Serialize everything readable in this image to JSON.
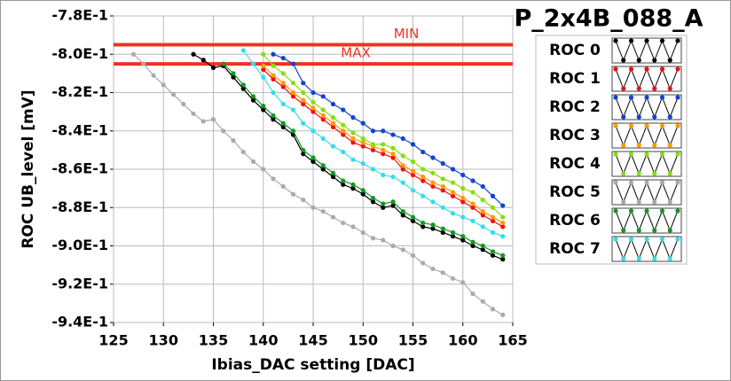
{
  "chart_data": {
    "type": "line",
    "title": "P_2x4B_088_A",
    "xlabel": "Ibias_DAC setting [DAC]",
    "ylabel": "ROC UB_level [mV]",
    "xlim": [
      125,
      165
    ],
    "xticks": [
      125,
      130,
      135,
      140,
      145,
      150,
      155,
      160,
      165
    ],
    "ylim": [
      -0.94,
      -0.78
    ],
    "yticks": [
      {
        "value": -0.94,
        "label": "-9.4E-1"
      },
      {
        "value": -0.92,
        "label": "-9.2E-1"
      },
      {
        "value": -0.9,
        "label": "-9.0E-1"
      },
      {
        "value": -0.88,
        "label": "-8.8E-1"
      },
      {
        "value": -0.86,
        "label": "-8.6E-1"
      },
      {
        "value": -0.84,
        "label": "-8.4E-1"
      },
      {
        "value": -0.82,
        "label": "-8.2E-1"
      },
      {
        "value": -0.8,
        "label": "-8.0E-1"
      },
      {
        "value": -0.78,
        "label": "-7.8E-1"
      }
    ],
    "grid": true,
    "limits": [
      {
        "label": "MIN",
        "value": -0.795,
        "color": "#ee3322"
      },
      {
        "label": "MAX",
        "value": -0.805,
        "color": "#ee3322"
      }
    ],
    "series": [
      {
        "name": "ROC 0",
        "color": "#000000",
        "x": [
          133,
          134,
          135,
          136,
          137,
          138,
          139,
          140,
          141,
          142,
          143,
          144,
          145,
          146,
          147,
          148,
          149,
          150,
          151,
          152,
          153,
          154,
          155,
          156,
          157,
          158,
          159,
          160,
          161,
          162,
          163,
          164
        ],
        "values": [
          -0.8,
          -0.803,
          -0.807,
          -0.806,
          -0.812,
          -0.818,
          -0.824,
          -0.829,
          -0.834,
          -0.838,
          -0.842,
          -0.852,
          -0.856,
          -0.86,
          -0.864,
          -0.868,
          -0.87,
          -0.873,
          -0.877,
          -0.88,
          -0.879,
          -0.884,
          -0.887,
          -0.89,
          -0.891,
          -0.893,
          -0.895,
          -0.897,
          -0.9,
          -0.902,
          -0.905,
          -0.907
        ]
      },
      {
        "name": "ROC 1",
        "color": "#ee1111",
        "x": [
          140,
          141,
          142,
          143,
          144,
          145,
          146,
          147,
          148,
          149,
          150,
          151,
          152,
          153,
          154,
          155,
          156,
          157,
          158,
          159,
          160,
          161,
          162,
          163,
          164
        ],
        "values": [
          -0.808,
          -0.813,
          -0.817,
          -0.822,
          -0.826,
          -0.83,
          -0.834,
          -0.838,
          -0.842,
          -0.846,
          -0.848,
          -0.85,
          -0.852,
          -0.854,
          -0.86,
          -0.863,
          -0.866,
          -0.869,
          -0.871,
          -0.874,
          -0.877,
          -0.88,
          -0.884,
          -0.887,
          -0.89
        ]
      },
      {
        "name": "ROC 2",
        "color": "#1144cc",
        "x": [
          141,
          142,
          143,
          144,
          145,
          146,
          147,
          148,
          149,
          150,
          151,
          152,
          153,
          154,
          155,
          156,
          157,
          158,
          159,
          160,
          161,
          162,
          163,
          164
        ],
        "values": [
          -0.8,
          -0.802,
          -0.805,
          -0.815,
          -0.82,
          -0.822,
          -0.826,
          -0.829,
          -0.833,
          -0.836,
          -0.84,
          -0.84,
          -0.842,
          -0.844,
          -0.847,
          -0.851,
          -0.854,
          -0.857,
          -0.86,
          -0.863,
          -0.866,
          -0.869,
          -0.874,
          -0.879
        ]
      },
      {
        "name": "ROC 3",
        "color": "#ff9900",
        "x": [
          140,
          141,
          142,
          143,
          144,
          145,
          146,
          147,
          148,
          149,
          150,
          151,
          152,
          153,
          154,
          155,
          156,
          157,
          158,
          159,
          160,
          161,
          162,
          163,
          164
        ],
        "values": [
          -0.806,
          -0.811,
          -0.815,
          -0.82,
          -0.824,
          -0.828,
          -0.832,
          -0.836,
          -0.84,
          -0.844,
          -0.846,
          -0.848,
          -0.85,
          -0.852,
          -0.858,
          -0.861,
          -0.864,
          -0.867,
          -0.869,
          -0.872,
          -0.875,
          -0.878,
          -0.882,
          -0.885,
          -0.888
        ]
      },
      {
        "name": "ROC 4",
        "color": "#88dd11",
        "x": [
          140,
          141,
          142,
          143,
          144,
          145,
          146,
          147,
          148,
          149,
          150,
          151,
          152,
          153,
          154,
          155,
          156,
          157,
          158,
          159,
          160,
          161,
          162,
          163,
          164
        ],
        "values": [
          -0.8,
          -0.806,
          -0.81,
          -0.815,
          -0.82,
          -0.825,
          -0.829,
          -0.833,
          -0.837,
          -0.841,
          -0.844,
          -0.847,
          -0.847,
          -0.849,
          -0.853,
          -0.856,
          -0.86,
          -0.862,
          -0.865,
          -0.867,
          -0.87,
          -0.872,
          -0.876,
          -0.88,
          -0.885
        ]
      },
      {
        "name": "ROC 5",
        "color": "#aaaaaa",
        "x": [
          127,
          128,
          129,
          130,
          131,
          132,
          133,
          134,
          135,
          136,
          137,
          138,
          139,
          140,
          141,
          142,
          143,
          144,
          145,
          146,
          147,
          148,
          149,
          150,
          151,
          152,
          153,
          154,
          155,
          156,
          157,
          158,
          159,
          160,
          161,
          162,
          163,
          164
        ],
        "values": [
          -0.8,
          -0.805,
          -0.811,
          -0.816,
          -0.821,
          -0.826,
          -0.831,
          -0.835,
          -0.834,
          -0.84,
          -0.845,
          -0.851,
          -0.856,
          -0.86,
          -0.865,
          -0.869,
          -0.873,
          -0.876,
          -0.88,
          -0.882,
          -0.885,
          -0.888,
          -0.89,
          -0.893,
          -0.896,
          -0.897,
          -0.9,
          -0.902,
          -0.905,
          -0.909,
          -0.912,
          -0.914,
          -0.917,
          -0.919,
          -0.925,
          -0.929,
          -0.933,
          -0.936
        ]
      },
      {
        "name": "ROC 6",
        "color": "#119922",
        "x": [
          136,
          137,
          138,
          139,
          140,
          141,
          142,
          143,
          144,
          145,
          146,
          147,
          148,
          149,
          150,
          151,
          152,
          153,
          154,
          155,
          156,
          157,
          158,
          159,
          160,
          161,
          162,
          163,
          164
        ],
        "values": [
          -0.805,
          -0.81,
          -0.816,
          -0.822,
          -0.827,
          -0.832,
          -0.836,
          -0.84,
          -0.85,
          -0.854,
          -0.858,
          -0.862,
          -0.866,
          -0.868,
          -0.871,
          -0.875,
          -0.878,
          -0.877,
          -0.882,
          -0.885,
          -0.888,
          -0.889,
          -0.891,
          -0.893,
          -0.895,
          -0.898,
          -0.9,
          -0.903,
          -0.905
        ]
      },
      {
        "name": "ROC 7",
        "color": "#33ddee",
        "x": [
          138,
          139,
          140,
          141,
          142,
          143,
          144,
          145,
          146,
          147,
          148,
          149,
          150,
          151,
          152,
          153,
          154,
          155,
          156,
          157,
          158,
          159,
          160,
          161,
          162,
          163,
          164
        ],
        "values": [
          -0.798,
          -0.805,
          -0.812,
          -0.82,
          -0.826,
          -0.829,
          -0.836,
          -0.84,
          -0.844,
          -0.848,
          -0.851,
          -0.855,
          -0.857,
          -0.86,
          -0.863,
          -0.864,
          -0.867,
          -0.871,
          -0.874,
          -0.877,
          -0.88,
          -0.883,
          -0.885,
          -0.887,
          -0.89,
          -0.893,
          -0.895
        ]
      }
    ]
  }
}
